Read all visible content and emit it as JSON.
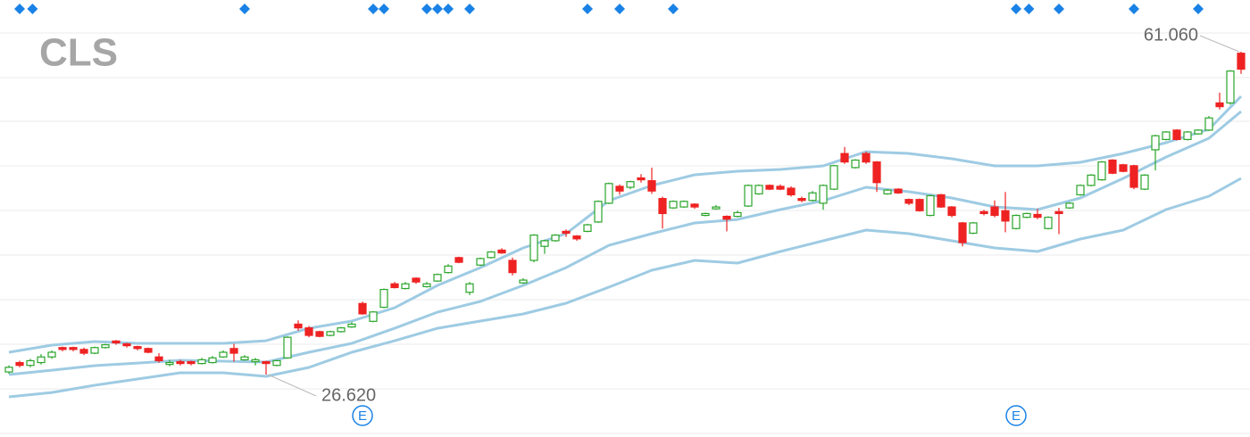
{
  "chart_data": {
    "type": "candlestick",
    "title": "CLS",
    "ylim": [
      19.96,
      66.58
    ],
    "grid_lines": [
      63.06,
      58.3,
      53.64,
      48.88,
      44.13,
      39.37,
      34.61,
      29.85,
      25.1,
      20.34
    ],
    "up_color": "#2aa52a",
    "down_color": "#ee2222",
    "band_color": "#9ecbe3",
    "marker_color": "#1a82e6",
    "candles": [
      [
        26.9,
        27.6,
        26.7,
        27.4
      ],
      [
        27.9,
        28.1,
        27.4,
        27.6
      ],
      [
        27.6,
        28.3,
        27.4,
        28.1
      ],
      [
        27.9,
        28.8,
        27.7,
        28.5
      ],
      [
        28.5,
        29.2,
        28.3,
        29.0
      ],
      [
        29.5,
        29.6,
        29.1,
        29.3
      ],
      [
        29.5,
        29.6,
        29.1,
        29.3
      ],
      [
        29.3,
        29.5,
        28.7,
        28.9
      ],
      [
        28.9,
        29.6,
        28.8,
        29.5
      ],
      [
        29.5,
        29.9,
        29.4,
        29.8
      ],
      [
        30.2,
        30.3,
        29.8,
        30.0
      ],
      [
        29.9,
        30.0,
        29.5,
        29.7
      ],
      [
        29.6,
        29.7,
        29.2,
        29.4
      ],
      [
        29.4,
        29.5,
        28.9,
        29.0
      ],
      [
        28.5,
        28.9,
        27.9,
        28.1
      ],
      [
        27.7,
        28.2,
        27.5,
        27.9
      ],
      [
        28.0,
        28.2,
        27.6,
        27.8
      ],
      [
        28.0,
        28.1,
        27.6,
        27.8
      ],
      [
        27.8,
        28.4,
        27.7,
        28.2
      ],
      [
        27.9,
        28.6,
        27.8,
        28.4
      ],
      [
        28.5,
        29.2,
        28.4,
        29.0
      ],
      [
        29.4,
        29.9,
        28.0,
        28.9
      ],
      [
        28.2,
        28.7,
        28.1,
        28.5
      ],
      [
        28.0,
        28.4,
        27.6,
        28.2
      ],
      [
        28.0,
        28.1,
        26.62,
        27.8
      ],
      [
        27.6,
        28.2,
        27.5,
        28.1
      ],
      [
        28.4,
        30.7,
        28.3,
        30.6
      ],
      [
        32.0,
        32.4,
        31.3,
        31.6
      ],
      [
        31.6,
        31.8,
        30.6,
        30.8
      ],
      [
        31.2,
        31.3,
        30.6,
        30.7
      ],
      [
        30.8,
        31.3,
        30.7,
        31.2
      ],
      [
        31.2,
        31.7,
        31.1,
        31.6
      ],
      [
        31.7,
        32.2,
        31.6,
        32.0
      ],
      [
        34.2,
        34.4,
        33.0,
        33.1
      ],
      [
        32.3,
        33.4,
        32.2,
        33.3
      ],
      [
        33.8,
        35.8,
        33.7,
        35.7
      ],
      [
        36.3,
        36.5,
        35.8,
        35.9
      ],
      [
        35.8,
        36.5,
        35.7,
        36.3
      ],
      [
        36.9,
        37.0,
        36.3,
        36.5
      ],
      [
        36.0,
        36.5,
        35.9,
        36.3
      ],
      [
        36.6,
        37.4,
        36.5,
        37.3
      ],
      [
        37.5,
        38.4,
        37.4,
        38.2
      ],
      [
        39.1,
        39.2,
        38.5,
        38.6
      ],
      [
        35.4,
        36.5,
        35.1,
        36.3
      ],
      [
        38.3,
        39.1,
        38.2,
        39.0
      ],
      [
        39.1,
        39.8,
        39.0,
        39.7
      ],
      [
        39.9,
        40.1,
        39.5,
        39.6
      ],
      [
        38.8,
        39.1,
        37.2,
        37.5
      ],
      [
        36.4,
        36.9,
        36.3,
        36.7
      ],
      [
        38.8,
        41.6,
        38.6,
        41.5
      ],
      [
        40.3,
        41.0,
        39.5,
        40.9
      ],
      [
        40.9,
        41.6,
        40.8,
        41.5
      ],
      [
        41.9,
        42.1,
        41.3,
        41.7
      ],
      [
        41.4,
        41.5,
        40.9,
        41.1
      ],
      [
        41.9,
        42.7,
        41.8,
        42.6
      ],
      [
        42.9,
        45.2,
        42.8,
        45.1
      ],
      [
        44.9,
        47.1,
        44.8,
        47.0
      ],
      [
        46.7,
        46.9,
        45.8,
        46.2
      ],
      [
        46.6,
        47.3,
        46.4,
        47.2
      ],
      [
        47.6,
        48.0,
        47.1,
        47.4
      ],
      [
        47.3,
        48.7,
        45.9,
        46.2
      ],
      [
        45.4,
        45.6,
        42.2,
        43.8
      ],
      [
        44.4,
        45.2,
        44.3,
        45.1
      ],
      [
        44.5,
        45.2,
        44.4,
        45.1
      ],
      [
        44.8,
        44.9,
        44.3,
        44.5
      ],
      [
        43.6,
        43.9,
        43.5,
        43.8
      ],
      [
        44.3,
        44.7,
        44.2,
        44.5
      ],
      [
        43.5,
        43.6,
        41.9,
        43.2
      ],
      [
        43.5,
        44.1,
        43.4,
        43.9
      ],
      [
        44.6,
        46.9,
        44.5,
        46.8
      ],
      [
        45.9,
        46.9,
        45.8,
        46.8
      ],
      [
        46.8,
        46.9,
        46.3,
        46.4
      ],
      [
        46.7,
        46.9,
        46.3,
        46.4
      ],
      [
        46.5,
        46.7,
        45.6,
        45.8
      ],
      [
        45.4,
        45.6,
        45.0,
        45.2
      ],
      [
        45.2,
        46.2,
        45.1,
        46.0
      ],
      [
        44.9,
        46.9,
        44.2,
        46.8
      ],
      [
        46.4,
        49.0,
        46.3,
        48.9
      ],
      [
        50.2,
        50.9,
        49.1,
        49.3
      ],
      [
        48.7,
        49.6,
        48.6,
        49.5
      ],
      [
        50.2,
        50.4,
        49.1,
        49.3
      ],
      [
        49.3,
        49.4,
        46.1,
        47.1
      ],
      [
        45.9,
        46.4,
        45.8,
        46.3
      ],
      [
        46.4,
        46.5,
        45.9,
        46.0
      ],
      [
        45.3,
        45.4,
        44.7,
        44.9
      ],
      [
        45.3,
        45.4,
        44.0,
        44.1
      ],
      [
        43.6,
        45.8,
        43.5,
        45.7
      ],
      [
        45.8,
        45.9,
        44.4,
        44.5
      ],
      [
        44.5,
        44.6,
        43.4,
        43.6
      ],
      [
        42.8,
        42.9,
        40.3,
        40.7
      ],
      [
        41.7,
        42.9,
        41.6,
        42.8
      ],
      [
        44.0,
        44.2,
        43.6,
        43.8
      ],
      [
        44.5,
        45.2,
        43.4,
        43.6
      ],
      [
        44.1,
        46.1,
        41.8,
        43.0
      ],
      [
        42.2,
        43.7,
        42.1,
        43.6
      ],
      [
        43.4,
        43.9,
        43.3,
        43.8
      ],
      [
        43.7,
        44.3,
        43.2,
        43.4
      ],
      [
        42.2,
        43.5,
        42.1,
        43.4
      ],
      [
        44.0,
        44.4,
        41.6,
        43.8
      ],
      [
        44.4,
        45.0,
        44.3,
        44.9
      ],
      [
        45.8,
        46.9,
        45.7,
        46.8
      ],
      [
        46.8,
        48.0,
        46.7,
        47.9
      ],
      [
        47.4,
        49.4,
        47.3,
        49.3
      ],
      [
        49.5,
        49.6,
        48.0,
        48.1
      ],
      [
        49.0,
        49.1,
        48.2,
        48.3
      ],
      [
        48.9,
        49.0,
        46.4,
        46.6
      ],
      [
        46.4,
        48.0,
        46.3,
        47.9
      ],
      [
        50.6,
        52.2,
        48.4,
        52.1
      ],
      [
        51.7,
        52.6,
        51.6,
        52.5
      ],
      [
        52.7,
        52.8,
        51.6,
        51.7
      ],
      [
        51.7,
        52.6,
        51.6,
        52.5
      ],
      [
        52.3,
        52.8,
        52.2,
        52.7
      ],
      [
        52.7,
        54.2,
        52.6,
        54.0
      ],
      [
        55.6,
        56.7,
        54.9,
        55.2
      ],
      [
        55.6,
        59.1,
        55.4,
        59.0
      ],
      [
        60.9,
        61.06,
        58.7,
        59.2
      ]
    ],
    "band_x": [
      0,
      4,
      8,
      12,
      16,
      20,
      24,
      28,
      32,
      36,
      40,
      44,
      48,
      52,
      56,
      60,
      64,
      68,
      72,
      76,
      80,
      84,
      88,
      92,
      96,
      100,
      104,
      108,
      112,
      115
    ],
    "bands": [
      {
        "values": [
          29.0,
          29.76,
          30.14,
          29.95,
          29.95,
          29.95,
          30.23,
          31.56,
          32.33,
          33.75,
          36.13,
          38.03,
          40.13,
          41.65,
          45.17,
          46.79,
          47.93,
          48.31,
          48.5,
          48.88,
          50.4,
          50.21,
          49.64,
          48.88,
          48.88,
          49.26,
          50.21,
          51.36,
          52.78,
          56.3
        ]
      },
      {
        "values": [
          26.62,
          27.09,
          27.57,
          27.85,
          28.14,
          28.05,
          27.95,
          29.0,
          29.95,
          31.56,
          33.28,
          34.42,
          36.13,
          38.03,
          40.41,
          41.65,
          42.79,
          43.17,
          44.22,
          45.17,
          46.6,
          46.12,
          45.46,
          44.51,
          44.22,
          45.46,
          47.55,
          49.83,
          51.83,
          54.69
        ]
      },
      {
        "values": [
          24.24,
          24.71,
          25.48,
          26.14,
          26.81,
          26.81,
          26.43,
          27.38,
          29.0,
          30.23,
          31.56,
          32.33,
          33.09,
          34.23,
          35.94,
          37.75,
          38.8,
          38.51,
          39.75,
          40.89,
          42.03,
          41.65,
          40.89,
          40.13,
          39.75,
          41.08,
          42.03,
          44.22,
          45.65,
          47.55
        ]
      }
    ],
    "event_markers": [
      1,
      2.2,
      22,
      34,
      35,
      39,
      40,
      41,
      43,
      54,
      57,
      62,
      94,
      95.2,
      98,
      105,
      111
    ],
    "earnings": [
      {
        "label": "E",
        "index": 33
      },
      {
        "label": "E",
        "index": 94
      }
    ],
    "annotations": [
      {
        "label": "61.060",
        "value": 61.06,
        "index": 115
      },
      {
        "label": "26.620",
        "value": 26.62,
        "index": 24
      }
    ]
  }
}
